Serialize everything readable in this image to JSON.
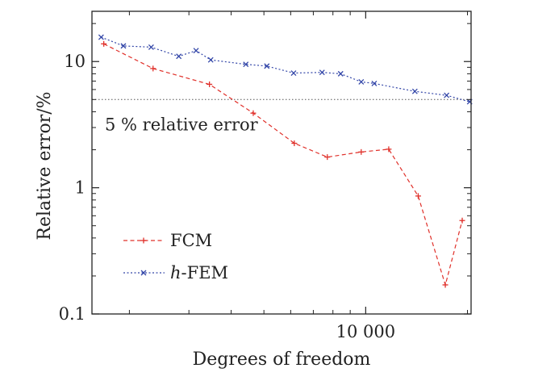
{
  "chart_data": {
    "type": "line",
    "xscale": "log",
    "yscale": "log",
    "xlabel": "Degrees of freedom",
    "ylabel": "Relative error/%",
    "xlim": [
      1550,
      20500
    ],
    "ylim": [
      0.1,
      25
    ],
    "x_ticks": [
      {
        "value": 10000,
        "label": "10 000"
      }
    ],
    "y_ticks": [
      {
        "value": 0.1,
        "label": "0.1"
      },
      {
        "value": 1,
        "label": "1"
      },
      {
        "value": 10,
        "label": "10"
      }
    ],
    "reference_line": {
      "value": 5,
      "label": "5 % relative error",
      "color": "#555555"
    },
    "legend": {
      "placement": "lower-left"
    },
    "series": [
      {
        "name": "FCM",
        "color": "#e0302a",
        "marker": "plus",
        "x": [
          1680,
          2350,
          3450,
          4650,
          6150,
          7700,
          9700,
          11700,
          14300,
          17200,
          19300
        ],
        "y": [
          13.8,
          8.8,
          6.6,
          3.9,
          2.25,
          1.75,
          1.92,
          2.02,
          0.86,
          0.17,
          0.55
        ]
      },
      {
        "name": "h-FEM",
        "name_prefix": "h",
        "name_suffix": "-FEM",
        "color": "#3346a8",
        "marker": "x",
        "x": [
          1650,
          1920,
          2320,
          2800,
          3150,
          3480,
          4420,
          5100,
          6120,
          7430,
          8430,
          9700,
          10600,
          13980,
          17350,
          20300
        ],
        "y": [
          15.6,
          13.3,
          13.0,
          11.0,
          12.2,
          10.3,
          9.5,
          9.2,
          8.1,
          8.2,
          8.0,
          6.9,
          6.7,
          5.8,
          5.4,
          4.8
        ]
      }
    ]
  }
}
